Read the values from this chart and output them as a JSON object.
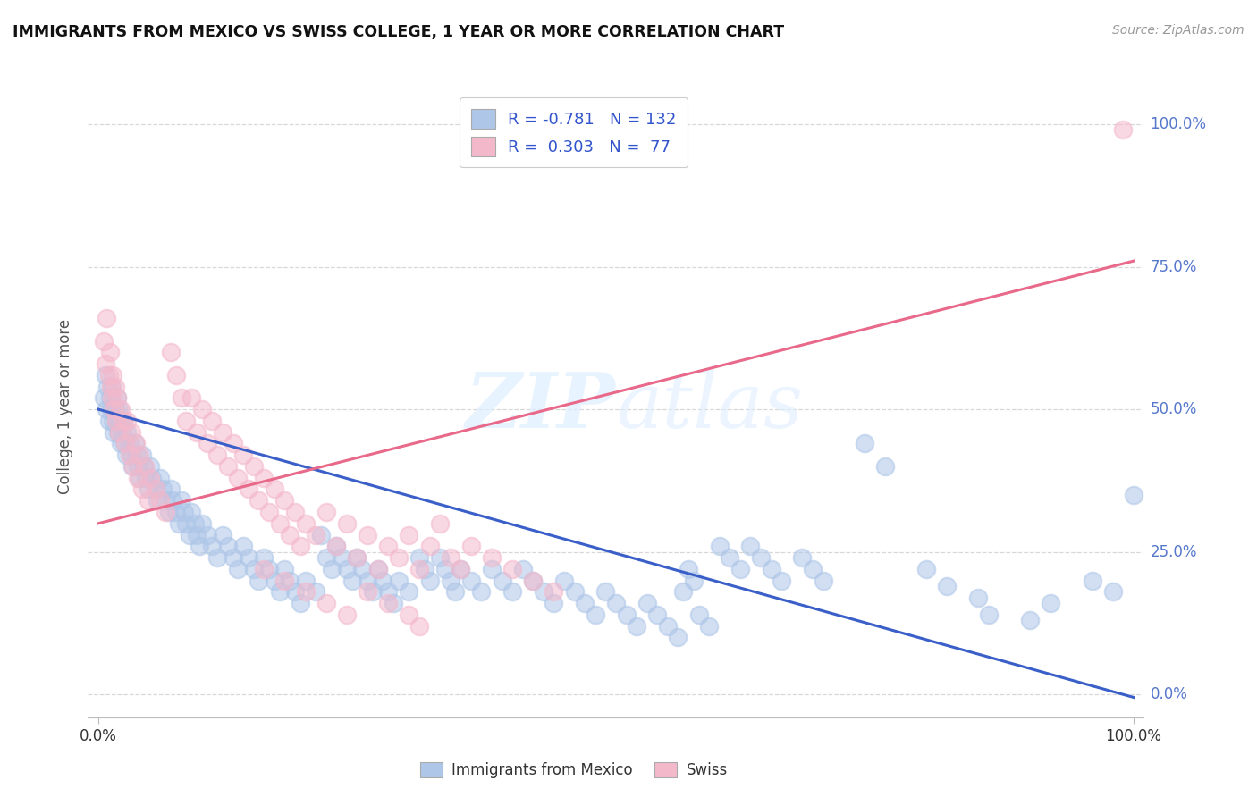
{
  "title": "IMMIGRANTS FROM MEXICO VS SWISS COLLEGE, 1 YEAR OR MORE CORRELATION CHART",
  "source": "Source: ZipAtlas.com",
  "ylabel": "College, 1 year or more",
  "yticks": [
    "0.0%",
    "25.0%",
    "50.0%",
    "75.0%",
    "100.0%"
  ],
  "ytick_vals": [
    0.0,
    0.25,
    0.5,
    0.75,
    1.0
  ],
  "watermark": "ZIPatlas",
  "blue_color": "#aec6e8",
  "pink_color": "#f4b8cb",
  "blue_line_color": "#3a5fc8",
  "pink_line_color": "#e8698a",
  "blue_scatter": [
    [
      0.005,
      0.52
    ],
    [
      0.007,
      0.56
    ],
    [
      0.008,
      0.5
    ],
    [
      0.009,
      0.54
    ],
    [
      0.01,
      0.48
    ],
    [
      0.011,
      0.52
    ],
    [
      0.012,
      0.5
    ],
    [
      0.013,
      0.54
    ],
    [
      0.014,
      0.48
    ],
    [
      0.015,
      0.46
    ],
    [
      0.016,
      0.5
    ],
    [
      0.017,
      0.48
    ],
    [
      0.018,
      0.52
    ],
    [
      0.019,
      0.46
    ],
    [
      0.02,
      0.5
    ],
    [
      0.021,
      0.48
    ],
    [
      0.022,
      0.44
    ],
    [
      0.023,
      0.46
    ],
    [
      0.024,
      0.48
    ],
    [
      0.025,
      0.44
    ],
    [
      0.027,
      0.42
    ],
    [
      0.028,
      0.46
    ],
    [
      0.03,
      0.44
    ],
    [
      0.032,
      0.42
    ],
    [
      0.033,
      0.4
    ],
    [
      0.035,
      0.44
    ],
    [
      0.037,
      0.42
    ],
    [
      0.038,
      0.4
    ],
    [
      0.04,
      0.38
    ],
    [
      0.042,
      0.42
    ],
    [
      0.044,
      0.4
    ],
    [
      0.046,
      0.38
    ],
    [
      0.048,
      0.36
    ],
    [
      0.05,
      0.4
    ],
    [
      0.052,
      0.38
    ],
    [
      0.055,
      0.36
    ],
    [
      0.057,
      0.34
    ],
    [
      0.06,
      0.38
    ],
    [
      0.062,
      0.36
    ],
    [
      0.065,
      0.34
    ],
    [
      0.068,
      0.32
    ],
    [
      0.07,
      0.36
    ],
    [
      0.072,
      0.34
    ],
    [
      0.075,
      0.32
    ],
    [
      0.078,
      0.3
    ],
    [
      0.08,
      0.34
    ],
    [
      0.083,
      0.32
    ],
    [
      0.085,
      0.3
    ],
    [
      0.088,
      0.28
    ],
    [
      0.09,
      0.32
    ],
    [
      0.093,
      0.3
    ],
    [
      0.095,
      0.28
    ],
    [
      0.098,
      0.26
    ],
    [
      0.1,
      0.3
    ],
    [
      0.105,
      0.28
    ],
    [
      0.11,
      0.26
    ],
    [
      0.115,
      0.24
    ],
    [
      0.12,
      0.28
    ],
    [
      0.125,
      0.26
    ],
    [
      0.13,
      0.24
    ],
    [
      0.135,
      0.22
    ],
    [
      0.14,
      0.26
    ],
    [
      0.145,
      0.24
    ],
    [
      0.15,
      0.22
    ],
    [
      0.155,
      0.2
    ],
    [
      0.16,
      0.24
    ],
    [
      0.165,
      0.22
    ],
    [
      0.17,
      0.2
    ],
    [
      0.175,
      0.18
    ],
    [
      0.18,
      0.22
    ],
    [
      0.185,
      0.2
    ],
    [
      0.19,
      0.18
    ],
    [
      0.195,
      0.16
    ],
    [
      0.2,
      0.2
    ],
    [
      0.21,
      0.18
    ],
    [
      0.215,
      0.28
    ],
    [
      0.22,
      0.24
    ],
    [
      0.225,
      0.22
    ],
    [
      0.23,
      0.26
    ],
    [
      0.235,
      0.24
    ],
    [
      0.24,
      0.22
    ],
    [
      0.245,
      0.2
    ],
    [
      0.25,
      0.24
    ],
    [
      0.255,
      0.22
    ],
    [
      0.26,
      0.2
    ],
    [
      0.265,
      0.18
    ],
    [
      0.27,
      0.22
    ],
    [
      0.275,
      0.2
    ],
    [
      0.28,
      0.18
    ],
    [
      0.285,
      0.16
    ],
    [
      0.29,
      0.2
    ],
    [
      0.3,
      0.18
    ],
    [
      0.31,
      0.24
    ],
    [
      0.315,
      0.22
    ],
    [
      0.32,
      0.2
    ],
    [
      0.33,
      0.24
    ],
    [
      0.335,
      0.22
    ],
    [
      0.34,
      0.2
    ],
    [
      0.345,
      0.18
    ],
    [
      0.35,
      0.22
    ],
    [
      0.36,
      0.2
    ],
    [
      0.37,
      0.18
    ],
    [
      0.38,
      0.22
    ],
    [
      0.39,
      0.2
    ],
    [
      0.4,
      0.18
    ],
    [
      0.41,
      0.22
    ],
    [
      0.42,
      0.2
    ],
    [
      0.43,
      0.18
    ],
    [
      0.44,
      0.16
    ],
    [
      0.45,
      0.2
    ],
    [
      0.46,
      0.18
    ],
    [
      0.47,
      0.16
    ],
    [
      0.48,
      0.14
    ],
    [
      0.49,
      0.18
    ],
    [
      0.5,
      0.16
    ],
    [
      0.51,
      0.14
    ],
    [
      0.52,
      0.12
    ],
    [
      0.53,
      0.16
    ],
    [
      0.54,
      0.14
    ],
    [
      0.55,
      0.12
    ],
    [
      0.56,
      0.1
    ],
    [
      0.565,
      0.18
    ],
    [
      0.57,
      0.22
    ],
    [
      0.575,
      0.2
    ],
    [
      0.58,
      0.14
    ],
    [
      0.59,
      0.12
    ],
    [
      0.6,
      0.26
    ],
    [
      0.61,
      0.24
    ],
    [
      0.62,
      0.22
    ],
    [
      0.63,
      0.26
    ],
    [
      0.64,
      0.24
    ],
    [
      0.65,
      0.22
    ],
    [
      0.66,
      0.2
    ],
    [
      0.68,
      0.24
    ],
    [
      0.69,
      0.22
    ],
    [
      0.7,
      0.2
    ],
    [
      0.74,
      0.44
    ],
    [
      0.76,
      0.4
    ],
    [
      0.8,
      0.22
    ],
    [
      0.82,
      0.19
    ],
    [
      0.85,
      0.17
    ],
    [
      0.86,
      0.14
    ],
    [
      0.9,
      0.13
    ],
    [
      0.92,
      0.16
    ],
    [
      0.96,
      0.2
    ],
    [
      0.98,
      0.18
    ],
    [
      1.0,
      0.35
    ]
  ],
  "pink_scatter": [
    [
      0.005,
      0.62
    ],
    [
      0.007,
      0.58
    ],
    [
      0.008,
      0.66
    ],
    [
      0.01,
      0.56
    ],
    [
      0.011,
      0.6
    ],
    [
      0.012,
      0.54
    ],
    [
      0.013,
      0.52
    ],
    [
      0.014,
      0.56
    ],
    [
      0.015,
      0.5
    ],
    [
      0.016,
      0.54
    ],
    [
      0.017,
      0.48
    ],
    [
      0.018,
      0.52
    ],
    [
      0.02,
      0.46
    ],
    [
      0.022,
      0.5
    ],
    [
      0.024,
      0.48
    ],
    [
      0.026,
      0.44
    ],
    [
      0.028,
      0.48
    ],
    [
      0.03,
      0.42
    ],
    [
      0.032,
      0.46
    ],
    [
      0.034,
      0.4
    ],
    [
      0.036,
      0.44
    ],
    [
      0.038,
      0.38
    ],
    [
      0.04,
      0.42
    ],
    [
      0.042,
      0.36
    ],
    [
      0.045,
      0.4
    ],
    [
      0.048,
      0.34
    ],
    [
      0.05,
      0.38
    ],
    [
      0.055,
      0.36
    ],
    [
      0.06,
      0.34
    ],
    [
      0.065,
      0.32
    ],
    [
      0.07,
      0.6
    ],
    [
      0.075,
      0.56
    ],
    [
      0.08,
      0.52
    ],
    [
      0.085,
      0.48
    ],
    [
      0.09,
      0.52
    ],
    [
      0.095,
      0.46
    ],
    [
      0.1,
      0.5
    ],
    [
      0.105,
      0.44
    ],
    [
      0.11,
      0.48
    ],
    [
      0.115,
      0.42
    ],
    [
      0.12,
      0.46
    ],
    [
      0.125,
      0.4
    ],
    [
      0.13,
      0.44
    ],
    [
      0.135,
      0.38
    ],
    [
      0.14,
      0.42
    ],
    [
      0.145,
      0.36
    ],
    [
      0.15,
      0.4
    ],
    [
      0.155,
      0.34
    ],
    [
      0.16,
      0.38
    ],
    [
      0.165,
      0.32
    ],
    [
      0.17,
      0.36
    ],
    [
      0.175,
      0.3
    ],
    [
      0.18,
      0.34
    ],
    [
      0.185,
      0.28
    ],
    [
      0.19,
      0.32
    ],
    [
      0.195,
      0.26
    ],
    [
      0.2,
      0.3
    ],
    [
      0.21,
      0.28
    ],
    [
      0.22,
      0.32
    ],
    [
      0.23,
      0.26
    ],
    [
      0.24,
      0.3
    ],
    [
      0.25,
      0.24
    ],
    [
      0.26,
      0.28
    ],
    [
      0.27,
      0.22
    ],
    [
      0.28,
      0.26
    ],
    [
      0.29,
      0.24
    ],
    [
      0.3,
      0.28
    ],
    [
      0.31,
      0.22
    ],
    [
      0.32,
      0.26
    ],
    [
      0.33,
      0.3
    ],
    [
      0.34,
      0.24
    ],
    [
      0.35,
      0.22
    ],
    [
      0.36,
      0.26
    ],
    [
      0.38,
      0.24
    ],
    [
      0.4,
      0.22
    ],
    [
      0.42,
      0.2
    ],
    [
      0.44,
      0.18
    ],
    [
      0.16,
      0.22
    ],
    [
      0.18,
      0.2
    ],
    [
      0.2,
      0.18
    ],
    [
      0.22,
      0.16
    ],
    [
      0.24,
      0.14
    ],
    [
      0.26,
      0.18
    ],
    [
      0.28,
      0.16
    ],
    [
      0.3,
      0.14
    ],
    [
      0.31,
      0.12
    ],
    [
      0.99,
      0.99
    ]
  ],
  "blue_line": {
    "x0": 0.0,
    "y0": 0.5,
    "x1": 1.0,
    "y1": -0.005
  },
  "pink_line": {
    "x0": 0.0,
    "y0": 0.3,
    "x1": 1.0,
    "y1": 0.76
  },
  "xlim": [
    -0.01,
    1.01
  ],
  "ylim": [
    -0.04,
    1.05
  ],
  "background_color": "#ffffff",
  "grid_color": "#d8d8d8",
  "tick_color": "#5577cc"
}
